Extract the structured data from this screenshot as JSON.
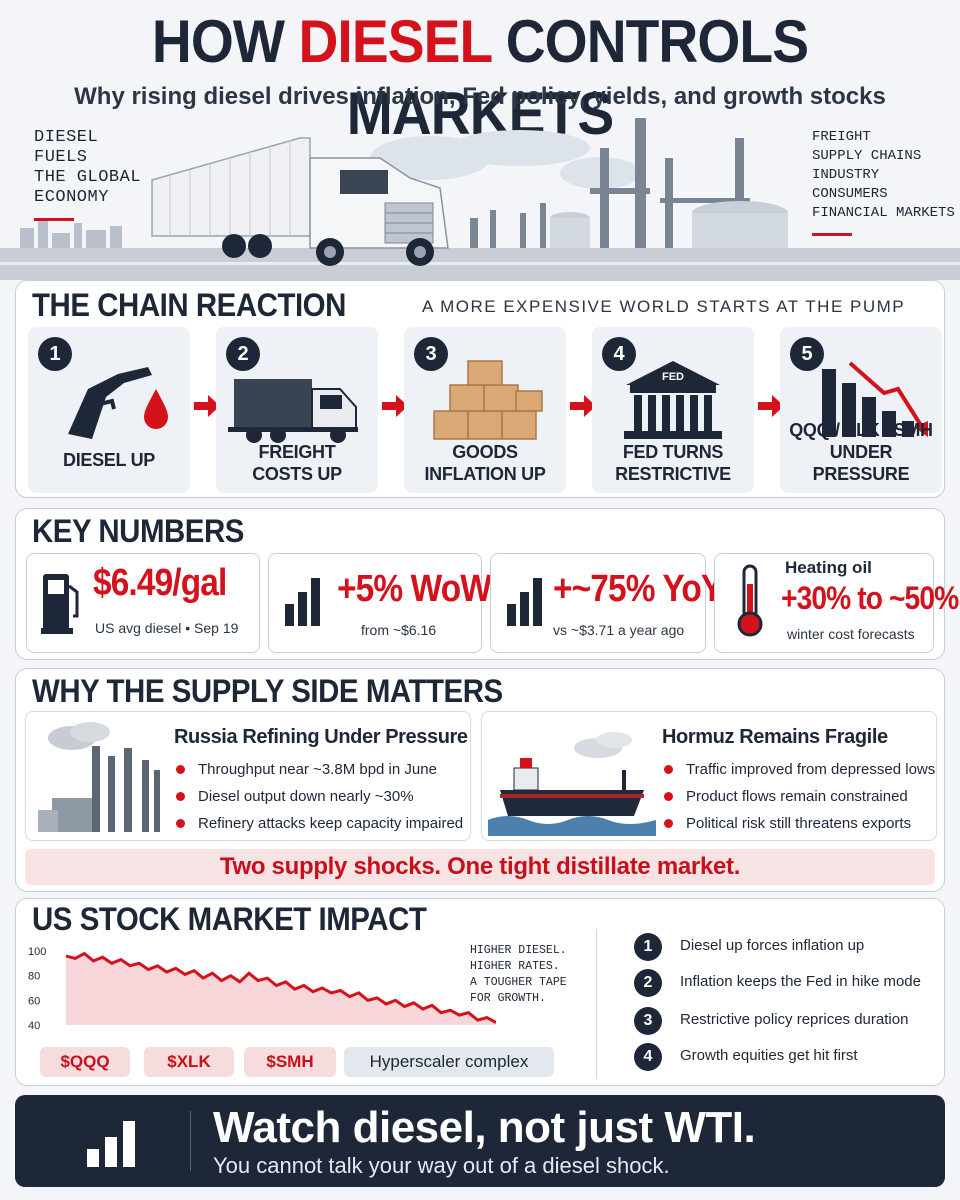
{
  "header": {
    "title_pre": "HOW ",
    "title_accent": "DIESEL",
    "title_post": " CONTROLS MARKETS",
    "subtitle": "Why rising diesel drives inflation, Fed policy, yields, and growth stocks"
  },
  "hero": {
    "left_lines": [
      "DIESEL",
      "FUELS",
      "THE GLOBAL",
      "ECONOMY"
    ],
    "right_lines": [
      "FREIGHT",
      "SUPPLY CHAINS",
      "INDUSTRY",
      "CONSUMERS",
      "FINANCIAL MARKETS"
    ]
  },
  "chain": {
    "title": "THE CHAIN REACTION",
    "tagline": "A MORE EXPENSIVE WORLD STARTS AT THE PUMP",
    "steps": [
      {
        "num": "1",
        "line1": "DIESEL UP",
        "line2": ""
      },
      {
        "num": "2",
        "line1": "FREIGHT",
        "line2": "COSTS UP"
      },
      {
        "num": "3",
        "line1": "GOODS",
        "line2": "INFLATION UP"
      },
      {
        "num": "4",
        "line1": "FED TURNS",
        "line2": "RESTRICTIVE",
        "icon_text": "FED"
      },
      {
        "num": "5",
        "line1": "QQQ / XLK / SMH",
        "line2": "UNDER PRESSURE"
      }
    ]
  },
  "key_numbers": {
    "title": "KEY NUMBERS",
    "cards": [
      {
        "big": "$6.49/gal",
        "small": "US avg diesel • Sep 19"
      },
      {
        "big": "+5% WoW",
        "small": "from ~$6.16"
      },
      {
        "big": "+~75% YoY",
        "small": "vs ~$3.71 a year ago"
      },
      {
        "label": "Heating oil",
        "big": "+30% to ~50%",
        "small": "winter cost forecasts"
      }
    ]
  },
  "supply": {
    "title": "WHY THE SUPPLY SIDE MATTERS",
    "russia": {
      "title": "Russia Refining Under Pressure",
      "bullets": [
        "Throughput near ~3.8M bpd in June",
        "Diesel output down nearly ~30%",
        "Refinery attacks keep capacity impaired"
      ]
    },
    "hormuz": {
      "title": "Hormuz Remains Fragile",
      "bullets": [
        "Traffic improved from depressed lows",
        "Product flows remain constrained",
        "Political risk still threatens exports"
      ]
    },
    "banner": "Two supply shocks. One tight distillate market."
  },
  "market": {
    "title": "US STOCK MARKET IMPACT",
    "note_lines": [
      "HIGHER DIESEL.",
      "HIGHER RATES.",
      "A TOUGHER TAPE",
      "FOR GROWTH."
    ],
    "pills": [
      "$QQQ",
      "$XLK",
      "$SMH",
      "Hyperscaler complex"
    ],
    "points": [
      {
        "num": "1",
        "text": "Diesel up forces inflation up"
      },
      {
        "num": "2",
        "text": "Inflation keeps the Fed in hike mode"
      },
      {
        "num": "3",
        "text": "Restrictive policy reprices duration"
      },
      {
        "num": "4",
        "text": "Growth equities get hit first"
      }
    ]
  },
  "chart_data": {
    "type": "area",
    "ylim": [
      40,
      100
    ],
    "yticks": [
      "100",
      "80",
      "60",
      "40"
    ],
    "values": [
      96,
      94,
      98,
      92,
      95,
      90,
      93,
      88,
      90,
      85,
      88,
      83,
      86,
      81,
      84,
      78,
      82,
      76,
      80,
      75,
      82,
      76,
      78,
      72,
      75,
      69,
      72,
      67,
      70,
      66,
      68,
      63,
      66,
      60,
      62,
      57,
      60,
      55,
      58,
      53,
      56,
      50,
      52,
      48,
      50,
      44,
      46,
      42
    ]
  },
  "footer": {
    "headline": "Watch diesel, not just WTI.",
    "subline": "You cannot talk your way out of a diesel shock."
  },
  "colors": {
    "accent_red": "#d4121c",
    "navy": "#1d2738"
  }
}
